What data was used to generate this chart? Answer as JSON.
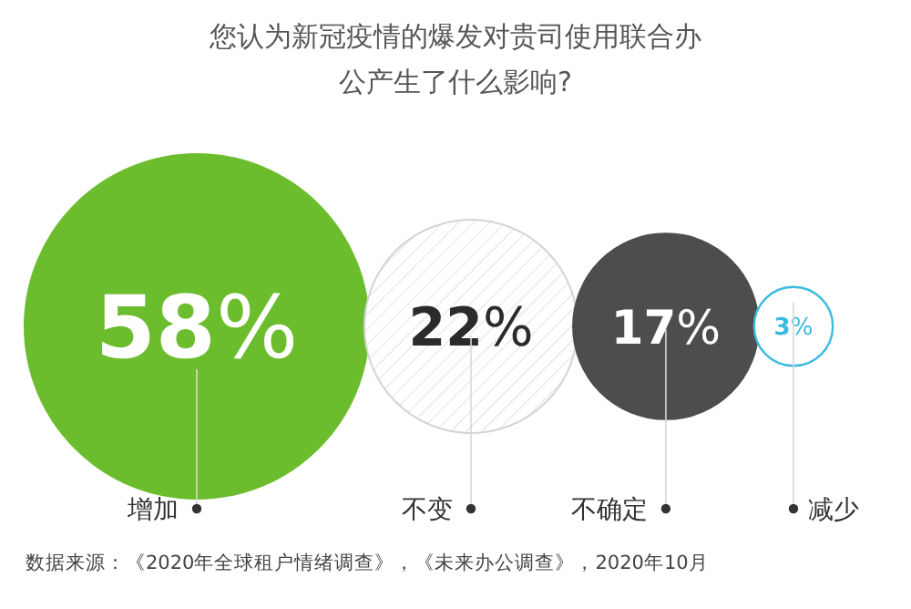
{
  "chart_data": {
    "type": "other",
    "title": "您认为新冠疫情的爆发对贵司使用联合办公产生了什么影响?",
    "categories": [
      "增加",
      "不变",
      "不确定",
      "减少"
    ],
    "values": [
      58,
      22,
      17,
      3
    ],
    "colors": [
      "#6cbd2e",
      "#d4d4d4",
      "#4d4d4d",
      "#3bbbe0"
    ],
    "value_labels": [
      "58%",
      "22%",
      "17%",
      "3%"
    ],
    "annotations": [
      "数据来源：《2020年全球租户情绪调查》，《未来办公调查》，2020年10月"
    ]
  }
}
